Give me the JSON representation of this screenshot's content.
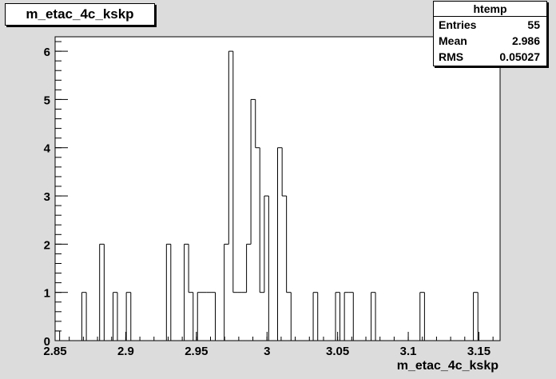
{
  "title": "m_etac_4c_kskp",
  "stats": {
    "name": "htemp",
    "rows": [
      {
        "key": "Entries",
        "value": "55"
      },
      {
        "key": "Mean",
        "value": "2.986"
      },
      {
        "key": "RMS",
        "value": "0.05027"
      }
    ]
  },
  "chart_data": {
    "type": "bar",
    "title": "m_etac_4c_kskp",
    "xlabel": "m_etac_4c_kskp",
    "ylabel": "",
    "xlim": [
      2.85,
      3.165
    ],
    "ylim": [
      0,
      6.3
    ],
    "xticks": [
      "2.85",
      "2.9",
      "2.95",
      "3",
      "3.05",
      "3.1",
      "3.15"
    ],
    "yticks": [
      "0",
      "1",
      "2",
      "3",
      "4",
      "5",
      "6"
    ],
    "bin_width": 0.00315,
    "bins": [
      {
        "x": 2.85,
        "y": 0.2
      },
      {
        "x": 2.8532,
        "y": 0
      },
      {
        "x": 2.8689,
        "y": 1
      },
      {
        "x": 2.8721,
        "y": 0
      },
      {
        "x": 2.8815,
        "y": 2
      },
      {
        "x": 2.8847,
        "y": 0
      },
      {
        "x": 2.891,
        "y": 1
      },
      {
        "x": 2.8941,
        "y": 0
      },
      {
        "x": 2.9004,
        "y": 1
      },
      {
        "x": 2.9036,
        "y": 0
      },
      {
        "x": 2.9288,
        "y": 2
      },
      {
        "x": 2.9319,
        "y": 0
      },
      {
        "x": 2.9414,
        "y": 2
      },
      {
        "x": 2.9445,
        "y": 1
      },
      {
        "x": 2.9477,
        "y": 0
      },
      {
        "x": 2.9508,
        "y": 1
      },
      {
        "x": 2.9571,
        "y": 1
      },
      {
        "x": 2.9603,
        "y": 1
      },
      {
        "x": 2.9634,
        "y": 0
      },
      {
        "x": 2.9697,
        "y": 2
      },
      {
        "x": 2.9729,
        "y": 6
      },
      {
        "x": 2.976,
        "y": 1
      },
      {
        "x": 2.9792,
        "y": 1
      },
      {
        "x": 2.9823,
        "y": 1
      },
      {
        "x": 2.9855,
        "y": 2
      },
      {
        "x": 2.9886,
        "y": 5
      },
      {
        "x": 2.9918,
        "y": 4
      },
      {
        "x": 2.9949,
        "y": 1
      },
      {
        "x": 2.9981,
        "y": 3
      },
      {
        "x": 3.0012,
        "y": 0
      },
      {
        "x": 3.0075,
        "y": 4
      },
      {
        "x": 3.0107,
        "y": 3
      },
      {
        "x": 3.0138,
        "y": 1
      },
      {
        "x": 3.017,
        "y": 0
      },
      {
        "x": 3.0327,
        "y": 1
      },
      {
        "x": 3.0359,
        "y": 0
      },
      {
        "x": 3.0485,
        "y": 1
      },
      {
        "x": 3.0516,
        "y": 0
      },
      {
        "x": 3.0548,
        "y": 1
      },
      {
        "x": 3.0579,
        "y": 1
      },
      {
        "x": 3.0611,
        "y": 0
      },
      {
        "x": 3.0737,
        "y": 1
      },
      {
        "x": 3.0768,
        "y": 0
      },
      {
        "x": 3.1083,
        "y": 1
      },
      {
        "x": 3.1115,
        "y": 0
      },
      {
        "x": 3.1461,
        "y": 1
      },
      {
        "x": 3.1493,
        "y": 0
      }
    ]
  }
}
